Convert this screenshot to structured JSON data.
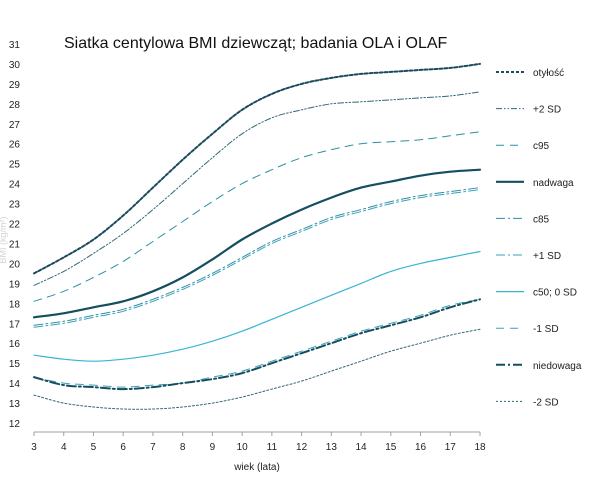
{
  "chart_data": {
    "type": "line",
    "title": "Siatka centylowa BMI dziewcząt; badania OLA i OLAF",
    "xlabel": "wiek (lata)",
    "ylabel": "BMI (kg/m²)",
    "xlim": [
      3,
      18
    ],
    "ylim": [
      12,
      31
    ],
    "x_ticks": [
      3,
      4,
      5,
      6,
      7,
      8,
      9,
      10,
      11,
      12,
      13,
      14,
      15,
      16,
      17,
      18
    ],
    "y_ticks": [
      12,
      13,
      14,
      15,
      16,
      17,
      18,
      19,
      20,
      21,
      22,
      23,
      24,
      25,
      26,
      27,
      28,
      29,
      30,
      31
    ],
    "grid": false,
    "legend_position": "right",
    "x": [
      3,
      4,
      5,
      6,
      7,
      8,
      9,
      10,
      11,
      12,
      13,
      14,
      15,
      16,
      17,
      18
    ],
    "series": [
      {
        "name": "otyłość",
        "color": "#1a4a5c",
        "dash": "dotted-thick",
        "values": [
          19.5,
          20.3,
          21.2,
          22.4,
          23.8,
          25.2,
          26.5,
          27.7,
          28.5,
          29.0,
          29.3,
          29.5,
          29.6,
          29.7,
          29.8,
          30.0
        ]
      },
      {
        "name": "+2 SD",
        "color": "#2f6878",
        "dash": "dashdotdot",
        "values": [
          18.9,
          19.6,
          20.5,
          21.5,
          22.7,
          24.0,
          25.3,
          26.5,
          27.3,
          27.7,
          28.0,
          28.1,
          28.2,
          28.3,
          28.4,
          28.6
        ]
      },
      {
        "name": "c95",
        "color": "#2d8fa8",
        "dash": "dashed",
        "values": [
          18.1,
          18.6,
          19.3,
          20.1,
          21.1,
          22.1,
          23.1,
          24.0,
          24.7,
          25.3,
          25.7,
          26.0,
          26.1,
          26.2,
          26.4,
          26.6
        ]
      },
      {
        "name": "nadwaga",
        "color": "#154e60",
        "dash": "solid-thick",
        "values": [
          17.3,
          17.5,
          17.8,
          18.1,
          18.6,
          19.3,
          20.2,
          21.2,
          22.0,
          22.7,
          23.3,
          23.8,
          24.1,
          24.4,
          24.6,
          24.7
        ]
      },
      {
        "name": "c85",
        "color": "#2d8fa8",
        "dash": "dashdot",
        "values": [
          16.9,
          17.1,
          17.4,
          17.7,
          18.2,
          18.8,
          19.5,
          20.3,
          21.1,
          21.7,
          22.3,
          22.7,
          23.1,
          23.4,
          23.6,
          23.8
        ]
      },
      {
        "name": "+1 SD",
        "color": "#3aa0b8",
        "dash": "dashdot",
        "values": [
          16.8,
          17.0,
          17.3,
          17.6,
          18.1,
          18.7,
          19.4,
          20.2,
          21.0,
          21.6,
          22.2,
          22.6,
          23.0,
          23.3,
          23.5,
          23.7
        ]
      },
      {
        "name": "c50; 0 SD",
        "color": "#39b4d4",
        "dash": "solid",
        "values": [
          15.4,
          15.2,
          15.1,
          15.2,
          15.4,
          15.7,
          16.1,
          16.6,
          17.2,
          17.8,
          18.4,
          19.0,
          19.6,
          20.0,
          20.3,
          20.6
        ]
      },
      {
        "name": "-1 SD",
        "color": "#3aa0b8",
        "dash": "dashed",
        "values": [
          14.3,
          14.0,
          13.9,
          13.8,
          13.9,
          14.0,
          14.3,
          14.6,
          15.1,
          15.6,
          16.1,
          16.6,
          17.0,
          17.4,
          17.9,
          18.2
        ]
      },
      {
        "name": "niedowaga",
        "color": "#154e60",
        "dash": "dashdot-thick",
        "values": [
          14.3,
          13.9,
          13.8,
          13.7,
          13.8,
          14.0,
          14.2,
          14.5,
          15.0,
          15.5,
          16.0,
          16.5,
          16.9,
          17.3,
          17.8,
          18.2
        ]
      },
      {
        "name": "-2 SD",
        "color": "#2f6878",
        "dash": "dotted",
        "values": [
          13.4,
          13.0,
          12.8,
          12.7,
          12.7,
          12.8,
          13.0,
          13.3,
          13.7,
          14.1,
          14.6,
          15.1,
          15.6,
          16.0,
          16.4,
          16.7
        ]
      }
    ]
  }
}
